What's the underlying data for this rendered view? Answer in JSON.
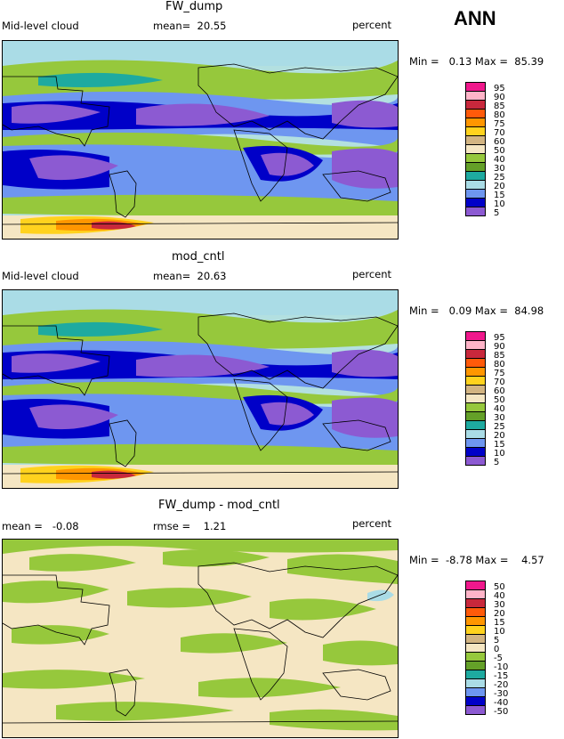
{
  "season": "ANN",
  "panels": [
    {
      "title": "FW_dump",
      "left_label": "Mid-level cloud",
      "mid_label": "mean=  20.55",
      "right_label": "percent",
      "minmax": "Min =   0.13 Max =  85.39",
      "colorbar_labels": [
        "95",
        "90",
        "85",
        "80",
        "75",
        "70",
        "60",
        "50",
        "40",
        "30",
        "25",
        "20",
        "15",
        "10",
        "5"
      ],
      "colorbar_colors": [
        "#f0188c",
        "#ffb4c8",
        "#c8283c",
        "#ff5a0a",
        "#ff9600",
        "#ffd21e",
        "#d2b482",
        "#f5e6c3",
        "#96c83c",
        "#64a028",
        "#1eaaa0",
        "#aadce6",
        "#6e96f0",
        "#0000c8",
        "#8c5ad2"
      ]
    },
    {
      "title": "mod_cntl",
      "left_label": "Mid-level cloud",
      "mid_label": "mean=  20.63",
      "right_label": "percent",
      "minmax": "Min =   0.09 Max =  84.98",
      "colorbar_labels": [
        "95",
        "90",
        "85",
        "80",
        "75",
        "70",
        "60",
        "50",
        "40",
        "30",
        "25",
        "20",
        "15",
        "10",
        "5"
      ],
      "colorbar_colors": [
        "#f0188c",
        "#ffb4c8",
        "#c8283c",
        "#ff5a0a",
        "#ff9600",
        "#ffd21e",
        "#d2b482",
        "#f5e6c3",
        "#96c83c",
        "#64a028",
        "#1eaaa0",
        "#aadce6",
        "#6e96f0",
        "#0000c8",
        "#8c5ad2"
      ]
    },
    {
      "title": "FW_dump - mod_cntl",
      "left_label": "mean =   -0.08",
      "mid_label": "rmse =    1.21",
      "right_label": "percent",
      "minmax": "Min =  -8.78 Max =    4.57",
      "colorbar_labels": [
        "50",
        "40",
        "30",
        "20",
        "15",
        "10",
        "5",
        "0",
        "-5",
        "-10",
        "-15",
        "-20",
        "-30",
        "-40",
        "-50"
      ],
      "colorbar_colors": [
        "#f0188c",
        "#ffb4c8",
        "#c8283c",
        "#ff5a0a",
        "#ff9600",
        "#ffd21e",
        "#d2b482",
        "#f5e6c3",
        "#96c83c",
        "#64a028",
        "#1eaaa0",
        "#aadce6",
        "#6e96f0",
        "#0000c8",
        "#8c5ad2"
      ]
    }
  ]
}
